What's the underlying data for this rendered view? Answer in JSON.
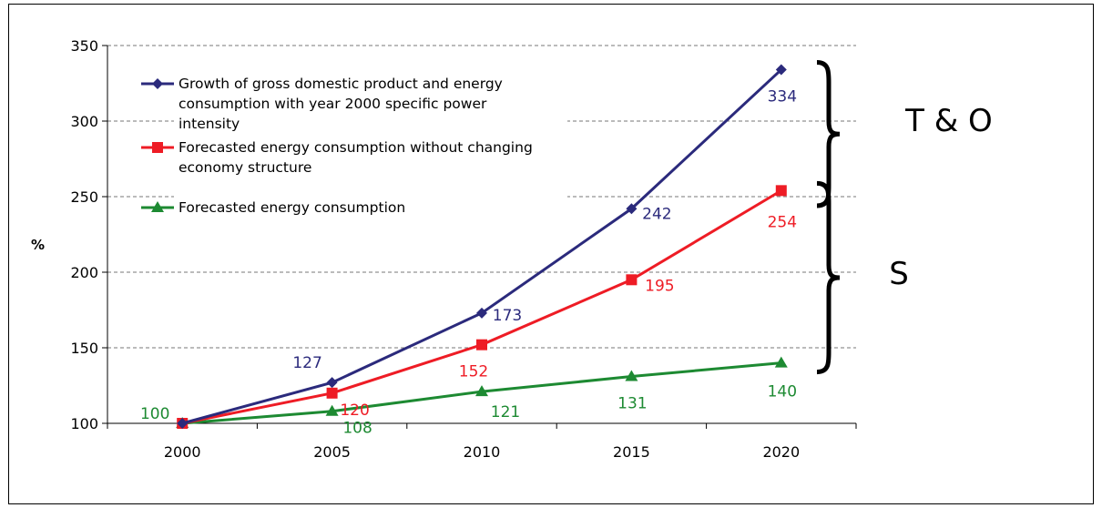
{
  "chart_data": {
    "type": "line",
    "title": "",
    "xlabel": "",
    "ylabel": "%",
    "categories": [
      "2000",
      "2005",
      "2010",
      "2015",
      "2020"
    ],
    "ylim": [
      100,
      350
    ],
    "yticks": [
      "100",
      "150",
      "200",
      "250",
      "300",
      "350"
    ],
    "grid": "horizontal dashed",
    "legend_position": "top-left",
    "series": [
      {
        "name": "Growth of gross domestic product and energy consumption  with year 2000 specific power intensity",
        "legend_lines": [
          "Growth of gross domestic product and energy",
          "consumption  with year 2000 specific power",
          "intensity"
        ],
        "values": [
          100,
          127,
          173,
          242,
          334
        ],
        "labels": [
          "",
          "127",
          "173",
          "242",
          "334"
        ],
        "marker": "diamond",
        "color": "#2b2a7c"
      },
      {
        "name": "Forecasted energy consumption without changing economy structure",
        "legend_lines": [
          "Forecasted energy consumption without changing",
          "economy structure"
        ],
        "values": [
          100,
          120,
          152,
          195,
          254
        ],
        "labels": [
          "",
          "120",
          "152",
          "195",
          "254"
        ],
        "marker": "square",
        "color": "#ee1c25"
      },
      {
        "name": "Forecasted energy consumption",
        "legend_lines": [
          "Forecasted energy consumption"
        ],
        "values": [
          100,
          108,
          121,
          131,
          140
        ],
        "labels": [
          "100",
          "108",
          "121",
          "131",
          "140"
        ],
        "marker": "triangle",
        "color": "#1d8a32"
      }
    ],
    "annotations": [
      {
        "text": "T & O",
        "range": [
          250,
          334
        ]
      },
      {
        "text": "S",
        "range": [
          140,
          254
        ]
      }
    ]
  }
}
